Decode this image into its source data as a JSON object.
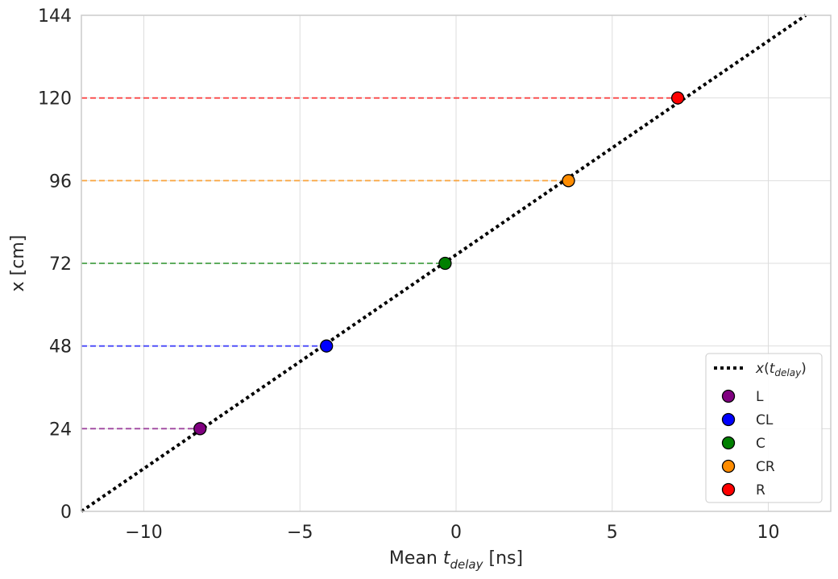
{
  "chart_data": {
    "type": "scatter",
    "xlabel_prefix": "Mean ",
    "xlabel_var": "t",
    "xlabel_sub": "delay",
    "xlabel_unit": " [ns]",
    "ylabel": "x [cm]",
    "xlim": [
      -12,
      12
    ],
    "ylim": [
      0,
      144
    ],
    "xticks": [
      -10,
      -5,
      0,
      5,
      10
    ],
    "xtick_labels": [
      "−10",
      "−5",
      "0",
      "5",
      "10"
    ],
    "yticks": [
      0,
      24,
      48,
      72,
      96,
      120,
      144
    ],
    "ytick_labels": [
      "0",
      "24",
      "48",
      "72",
      "96",
      "120",
      "144"
    ],
    "grid": true,
    "fit_line": {
      "label_var": "x",
      "label_arg": "t",
      "label_sub": "delay",
      "style": "dotted",
      "color": "#000000",
      "points": [
        [
          -12,
          0
        ],
        [
          11.2,
          144
        ]
      ]
    },
    "points": [
      {
        "name": "L",
        "x": -8.2,
        "y": 24,
        "color": "#800080"
      },
      {
        "name": "CL",
        "x": -4.15,
        "y": 48,
        "color": "#0000ff"
      },
      {
        "name": "C",
        "x": -0.35,
        "y": 72,
        "color": "#008000"
      },
      {
        "name": "CR",
        "x": 3.6,
        "y": 96,
        "color": "#ff8c00"
      },
      {
        "name": "R",
        "x": 7.1,
        "y": 120,
        "color": "#ff0000"
      }
    ],
    "legend_position": "lower-right"
  }
}
